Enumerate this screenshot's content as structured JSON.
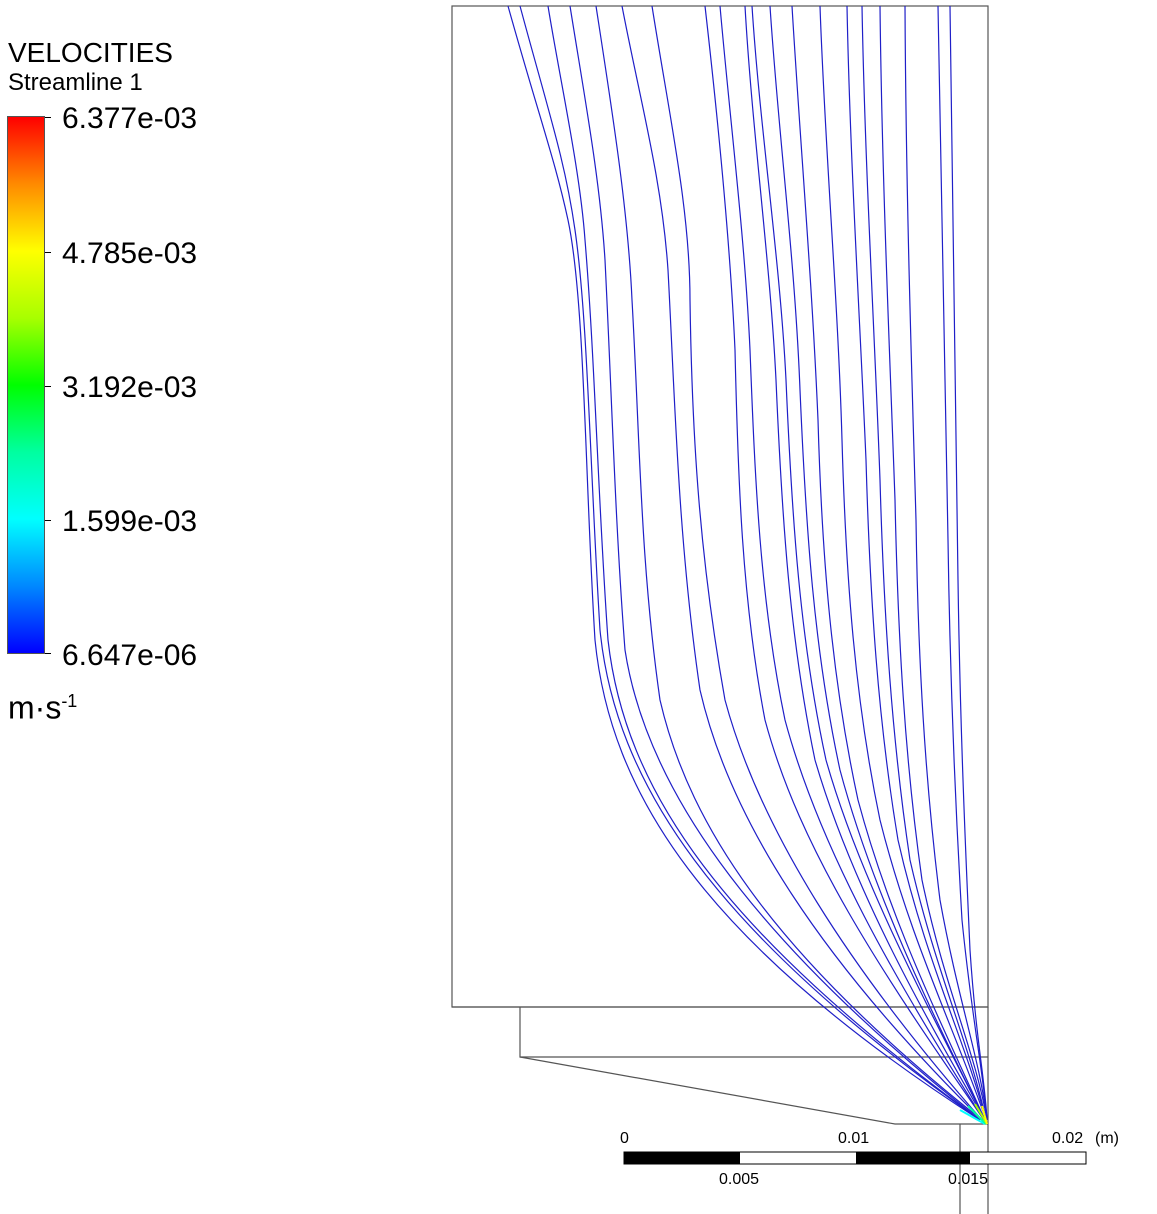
{
  "legend": {
    "title": "VELOCITIES",
    "subtitle": "Streamline 1",
    "ticks": [
      "6.377e-03",
      "4.785e-03",
      "3.192e-03",
      "1.599e-03",
      "6.647e-06"
    ],
    "units_base": "m·s",
    "units_exp": "-1",
    "colormap": [
      "#ff0000",
      "#ff8a00",
      "#ffff00",
      "#a8ff00",
      "#00ff00",
      "#00ffa0",
      "#00ffff",
      "#0088ff",
      "#0000ff"
    ]
  },
  "scale_bar": {
    "top_labels": [
      "0",
      "0.01",
      "0.02"
    ],
    "bottom_labels": [
      "0.005",
      "0.015"
    ],
    "unit": "(m)"
  },
  "colors": {
    "streamline": "#1f1fc8",
    "outline": "#555555"
  }
}
